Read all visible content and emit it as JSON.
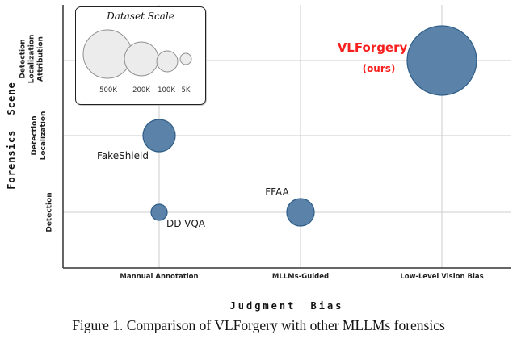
{
  "figure": {
    "caption": "Figure 1. Comparison of VLForgery with other MLLMs forensics"
  },
  "chart_data": {
    "type": "scatter",
    "subtype": "bubble",
    "x_axis": {
      "title": "Judgment Bias",
      "categories": [
        "Mannual Annotation",
        "MLLMs-Guided",
        "Low-Level Vision Bias"
      ]
    },
    "y_axis": {
      "title": "Forensics Scene",
      "categories": [
        "Detection",
        "Detection Localization",
        "Detection Localization Attribution"
      ]
    },
    "legend": {
      "title": "Dataset Scale",
      "sizes": [
        "500K",
        "200K",
        "100K",
        "5K"
      ]
    },
    "grid": true,
    "bubble_color": "#5b82a8",
    "bubble_stroke": "#2e5d87",
    "legend_bubble_color": "#ececec",
    "legend_bubble_stroke": "#8f8f8f",
    "points": [
      {
        "label": "FakeShield",
        "x": "Mannual Annotation",
        "y": "Detection Localization",
        "bubble_radius_px": 20,
        "label_color": "#1a1a1a"
      },
      {
        "label": "DD-VQA",
        "x": "Mannual Annotation",
        "y": "Detection",
        "bubble_radius_px": 10,
        "label_color": "#1a1a1a"
      },
      {
        "label": "FFAA",
        "x": "MLLMs-Guided",
        "y": "Detection",
        "bubble_radius_px": 17,
        "label_color": "#1a1a1a"
      },
      {
        "label": "VLForgery",
        "sublabel": "(ours)",
        "x": "Low-Level Vision Bias",
        "y": "Detection Localization Attribution",
        "bubble_radius_px": 43,
        "label_color": "#f81f1f"
      }
    ]
  }
}
